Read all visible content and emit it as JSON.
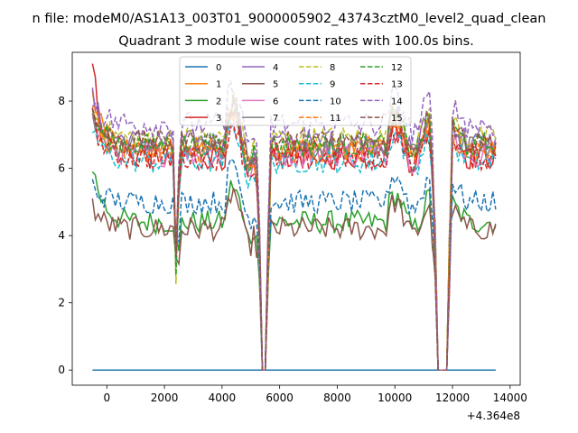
{
  "chart_data": {
    "type": "line",
    "title": "n file: modeM0/AS1A13_003T01_9000005902_43743cztM0_level2_quad_clean",
    "subtitle": "Quadrant 3 module wise count rates with 100.0s bins.",
    "xlabel": "",
    "ylabel": "",
    "x_offset_label": "+4.364e8",
    "xlim": [
      -1200,
      14350
    ],
    "ylim": [
      -0.45,
      9.45
    ],
    "x_ticks": [
      0,
      2000,
      4000,
      6000,
      8000,
      10000,
      12000,
      14000
    ],
    "x_tick_labels": [
      "0",
      "2000",
      "4000",
      "6000",
      "8000",
      "10000",
      "12000",
      "14000"
    ],
    "y_ticks": [
      0,
      2,
      4,
      6,
      8
    ],
    "y_tick_labels": [
      "0",
      "2",
      "4",
      "6",
      "8"
    ],
    "legend_position": "top-center",
    "legend_columns": 4,
    "grid": false,
    "x_range": [
      -500,
      13500
    ],
    "bin_seconds": 100,
    "gap_intervals": [
      [
        2380,
        2460
      ],
      [
        5250,
        5600
      ],
      [
        11350,
        11950
      ]
    ],
    "series": [
      {
        "name": "0",
        "color": "#1f77b4",
        "dash": "solid",
        "level": 0.0,
        "start": 0.0,
        "amp": 0.0
      },
      {
        "name": "1",
        "color": "#ff7f0e",
        "dash": "solid",
        "level": 6.6,
        "start": 8.2,
        "amp": 0.35
      },
      {
        "name": "2",
        "color": "#2ca02c",
        "dash": "solid",
        "level": 4.4,
        "start": 6.1,
        "amp": 0.35
      },
      {
        "name": "3",
        "color": "#d62728",
        "dash": "solid",
        "level": 6.4,
        "start": 9.0,
        "amp": 0.45
      },
      {
        "name": "4",
        "color": "#9467bd",
        "dash": "solid",
        "level": 6.8,
        "start": 8.2,
        "amp": 0.35
      },
      {
        "name": "5",
        "color": "#8c564b",
        "dash": "solid",
        "level": 4.2,
        "start": 4.9,
        "amp": 0.35
      },
      {
        "name": "6",
        "color": "#e377c2",
        "dash": "solid",
        "level": 6.4,
        "start": 7.6,
        "amp": 0.35
      },
      {
        "name": "7",
        "color": "#7f7f7f",
        "dash": "solid",
        "level": 6.6,
        "start": 7.4,
        "amp": 0.35
      },
      {
        "name": "8",
        "color": "#bcbd22",
        "dash": "dashed",
        "level": 6.9,
        "start": 7.8,
        "amp": 0.35
      },
      {
        "name": "9",
        "color": "#17becf",
        "dash": "dashed",
        "level": 6.2,
        "start": 7.2,
        "amp": 0.35
      },
      {
        "name": "10",
        "color": "#1f77b4",
        "dash": "dashed",
        "level": 5.0,
        "start": 5.5,
        "amp": 0.35
      },
      {
        "name": "11",
        "color": "#ff7f0e",
        "dash": "dashed",
        "level": 6.5,
        "start": 7.9,
        "amp": 0.35
      },
      {
        "name": "12",
        "color": "#2ca02c",
        "dash": "dashed",
        "level": 6.7,
        "start": 7.7,
        "amp": 0.35
      },
      {
        "name": "13",
        "color": "#d62728",
        "dash": "dashed",
        "level": 6.3,
        "start": 7.5,
        "amp": 0.35
      },
      {
        "name": "14",
        "color": "#9467bd",
        "dash": "dashed",
        "level": 7.3,
        "start": 8.1,
        "amp": 0.4
      },
      {
        "name": "15",
        "color": "#8c564b",
        "dash": "dashed",
        "level": 6.8,
        "start": 7.6,
        "amp": 0.35
      }
    ]
  }
}
